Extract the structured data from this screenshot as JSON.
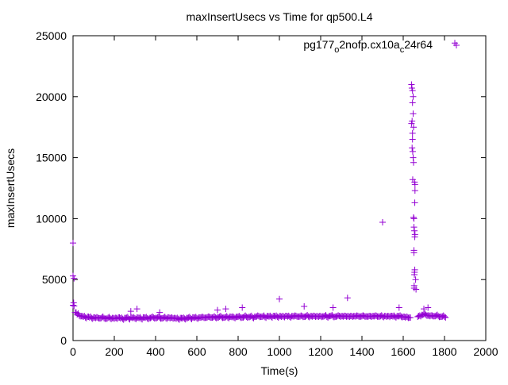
{
  "chart_data": {
    "type": "scatter",
    "title": "maxInsertUsecs vs Time for qp500.L4",
    "xlabel": "Time(s)",
    "ylabel": "maxInsertUsecs",
    "xlim": [
      0,
      2000
    ],
    "ylim": [
      0,
      25000
    ],
    "xticks": [
      0,
      200,
      400,
      600,
      800,
      1000,
      1200,
      1400,
      1600,
      1800,
      2000
    ],
    "yticks": [
      0,
      5000,
      10000,
      15000,
      20000,
      25000
    ],
    "grid": false,
    "legend": {
      "position": "top-right",
      "label_parts": [
        "pg177",
        "o",
        "2nofp.cx10a",
        "c",
        "24r64"
      ]
    },
    "series": [
      {
        "name": "pg177_o2nofp.cx10a_c24r64",
        "color": "#9400d3",
        "marker": "plus",
        "baseline": {
          "x_start": 0,
          "x_step": 10,
          "y": [
            2900,
            2300,
            2150,
            2050,
            2000,
            1950,
            1900,
            1950,
            1900,
            1850,
            1900,
            1850,
            1880,
            1820,
            1900,
            1850,
            1800,
            1870,
            1830,
            1850,
            1800,
            1850,
            1900,
            1820,
            1780,
            1850,
            1870,
            1800,
            1900,
            1850,
            1820,
            1880,
            1850,
            1800,
            1900,
            1870,
            1830,
            1850,
            1900,
            1880,
            1850,
            1900,
            1870,
            1820,
            1880,
            1850,
            1900,
            1830,
            1870,
            1850,
            1800,
            1780,
            1850,
            1820,
            1800,
            1850,
            1880,
            1830,
            1900,
            1870,
            1850,
            1900,
            1880,
            1920,
            1870,
            1900,
            1950,
            1880,
            1920,
            1900,
            1900,
            1950,
            1920,
            1880,
            1930,
            1900,
            1950,
            1920,
            1900,
            1940,
            1950,
            1920,
            1900,
            1980,
            1950,
            1930,
            1970,
            1900,
            1950,
            1980,
            2000,
            1950,
            1980,
            1930,
            2000,
            1970,
            1950,
            2020,
            1980,
            1950,
            2000,
            1950,
            1980,
            2020,
            1970,
            1950,
            2000,
            1980,
            2030,
            1960,
            1980,
            2000,
            1950,
            2020,
            1980,
            2000,
            1970,
            2010,
            1990,
            1950,
            2000,
            1980,
            2020,
            1950,
            2000,
            2030,
            1980,
            1960,
            2000,
            2020,
            2000,
            1970,
            2020,
            1990,
            1950,
            2010,
            2000,
            1980,
            2030,
            1970,
            2000,
            2020,
            1980,
            1960,
            2010,
            2000,
            1990,
            2030,
            1970,
            2000,
            1980,
            2010,
            1950,
            2000,
            2020,
            1980,
            1960,
            2000,
            1990,
            1970,
            1950,
            1900,
            1920,
            1880,
            null,
            null,
            null,
            1950,
            2050,
            2100,
            2150,
            2100,
            2050,
            2000,
            2050,
            2000,
            2050,
            2000,
            1950,
            1980,
            1950
          ]
        },
        "points": [
          [
            0,
            8000
          ],
          [
            0,
            5300
          ],
          [
            5,
            5100
          ],
          [
            3,
            3100
          ],
          [
            310,
            2600
          ],
          [
            280,
            2400
          ],
          [
            420,
            2300
          ],
          [
            700,
            2500
          ],
          [
            740,
            2600
          ],
          [
            820,
            2700
          ],
          [
            1000,
            3400
          ],
          [
            1120,
            2800
          ],
          [
            1260,
            2700
          ],
          [
            1330,
            3500
          ],
          [
            1500,
            9700
          ],
          [
            1580,
            2700
          ],
          [
            1700,
            2600
          ],
          [
            1720,
            2700
          ],
          [
            1850,
            24400
          ],
          [
            1640,
            21000
          ],
          [
            1642,
            20700
          ],
          [
            1645,
            20500
          ],
          [
            1648,
            20000
          ],
          [
            1645,
            19500
          ],
          [
            1648,
            18600
          ],
          [
            1643,
            18000
          ],
          [
            1640,
            17800
          ],
          [
            1650,
            17500
          ],
          [
            1645,
            17000
          ],
          [
            1645,
            16500
          ],
          [
            1643,
            15800
          ],
          [
            1646,
            15500
          ],
          [
            1648,
            15000
          ],
          [
            1650,
            14600
          ],
          [
            1646,
            13200
          ],
          [
            1655,
            13000
          ],
          [
            1657,
            12800
          ],
          [
            1657,
            12300
          ],
          [
            1656,
            11300
          ],
          [
            1650,
            10100
          ],
          [
            1652,
            10000
          ],
          [
            1652,
            9300
          ],
          [
            1654,
            9000
          ],
          [
            1657,
            8700
          ],
          [
            1656,
            8500
          ],
          [
            1652,
            7400
          ],
          [
            1652,
            7200
          ],
          [
            1656,
            5800
          ],
          [
            1655,
            5600
          ],
          [
            1654,
            5400
          ],
          [
            1660,
            5000
          ],
          [
            1653,
            4500
          ],
          [
            1653,
            4300
          ],
          [
            1662,
            4200
          ]
        ]
      }
    ]
  }
}
